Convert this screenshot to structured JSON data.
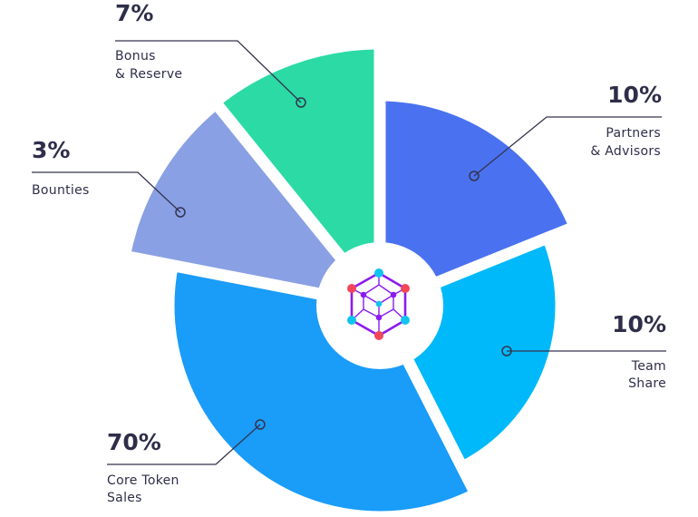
{
  "chart_data": {
    "type": "pie",
    "title": "",
    "slices": [
      {
        "label_line1": "Partners",
        "label_line2": "& Advisors",
        "value": 10,
        "value_label": "10%",
        "color": "#4a72f0"
      },
      {
        "label_line1": "Team",
        "label_line2": "Share",
        "value": 10,
        "value_label": "10%",
        "color": "#00b9fa"
      },
      {
        "label_line1": "Core Token",
        "label_line2": "Sales",
        "value": 70,
        "value_label": "70%",
        "color": "#1a9cf9"
      },
      {
        "label_line1": "Bounties",
        "label_line2": "",
        "value": 3,
        "value_label": "3%",
        "color": "#8aa0e4"
      },
      {
        "label_line1": "Bonus",
        "label_line2": "& Reserve",
        "value": 7,
        "value_label": "7%",
        "color": "#2bdaa5"
      }
    ],
    "center_icon": "hexagon-network-logo",
    "colors": {
      "text": "#2e2e4a",
      "logo_purple": "#8a1cf0",
      "logo_red": "#f2465a",
      "logo_cyan": "#10c4f0"
    }
  }
}
